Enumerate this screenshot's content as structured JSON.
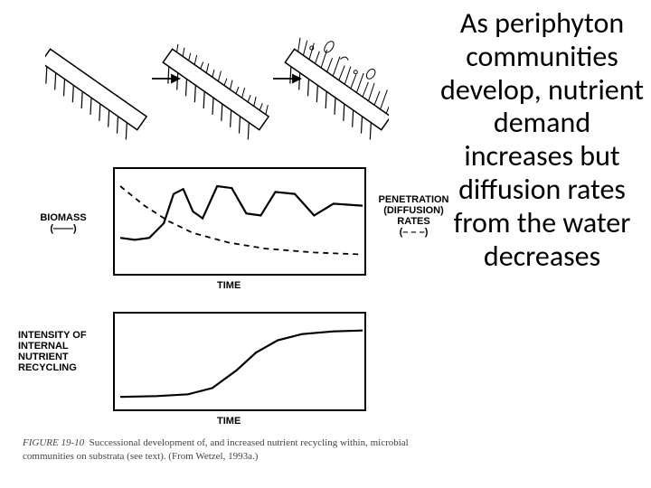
{
  "rightText": "As periphyton communities develop, nutrient demand increases but diffusion rates from the water decreases",
  "topDiagrams": {
    "count": 3,
    "hatchAngle": -55,
    "hatchColor": "#000000",
    "growthLevels": [
      0,
      1,
      2
    ]
  },
  "chart1": {
    "leftLabel": "BIOMASS",
    "leftArrowText": "(——)",
    "rightLabel": "PENETRATION (DIFFUSION) RATES",
    "rightArrowText": "(– – –)",
    "xLabel": "TIME",
    "biomass": {
      "points": [
        [
          0,
          0.35
        ],
        [
          0.06,
          0.33
        ],
        [
          0.12,
          0.35
        ],
        [
          0.18,
          0.5
        ],
        [
          0.22,
          0.8
        ],
        [
          0.26,
          0.85
        ],
        [
          0.3,
          0.62
        ],
        [
          0.34,
          0.55
        ],
        [
          0.4,
          0.88
        ],
        [
          0.46,
          0.86
        ],
        [
          0.52,
          0.6
        ],
        [
          0.58,
          0.58
        ],
        [
          0.64,
          0.82
        ],
        [
          0.72,
          0.8
        ],
        [
          0.8,
          0.58
        ],
        [
          0.88,
          0.7
        ],
        [
          1.0,
          0.68
        ]
      ],
      "stroke": "#000000",
      "width": 2.2,
      "dash": "none"
    },
    "penetration": {
      "points": [
        [
          0,
          0.88
        ],
        [
          0.1,
          0.68
        ],
        [
          0.2,
          0.52
        ],
        [
          0.3,
          0.4
        ],
        [
          0.45,
          0.3
        ],
        [
          0.6,
          0.24
        ],
        [
          0.8,
          0.2
        ],
        [
          1.0,
          0.18
        ]
      ],
      "stroke": "#000000",
      "width": 1.8,
      "dash": "6,5"
    }
  },
  "chart2": {
    "leftLabel": "INTENSITY OF INTERNAL NUTRIENT RECYCLING",
    "xLabel": "TIME",
    "curve": {
      "points": [
        [
          0,
          0.12
        ],
        [
          0.15,
          0.13
        ],
        [
          0.28,
          0.15
        ],
        [
          0.38,
          0.22
        ],
        [
          0.48,
          0.42
        ],
        [
          0.56,
          0.62
        ],
        [
          0.65,
          0.76
        ],
        [
          0.75,
          0.83
        ],
        [
          0.88,
          0.86
        ],
        [
          1.0,
          0.87
        ]
      ],
      "stroke": "#000000",
      "width": 2.2,
      "dash": "none"
    }
  },
  "caption": {
    "figLabel": "FIGURE 19-10",
    "text": "Successional development of, and increased nutrient recycling within, microbial communities on substrata (see text). (From Wetzel, 1993a.)"
  },
  "colors": {
    "background": "#ffffff",
    "line": "#000000",
    "captionText": "#444444"
  },
  "fonts": {
    "rightText": {
      "family": "Calibri",
      "size": 32,
      "weight": "normal"
    },
    "axisLabel": {
      "family": "Arial",
      "size": 11,
      "weight": "bold"
    },
    "caption": {
      "family": "Times New Roman",
      "size": 11,
      "weight": "normal"
    }
  }
}
